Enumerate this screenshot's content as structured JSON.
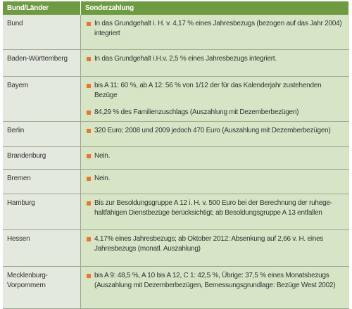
{
  "table": {
    "header": [
      "Bund/Länder",
      "Sonderzahlung"
    ],
    "rows": [
      {
        "land": "Bund",
        "items": [
          "In das Grundgehalt i. H. v. 4,17 % eines Jahresbezugs (bezogen auf das Jahr 2004) integriert"
        ]
      },
      {
        "land": "Baden-Württemberg",
        "items": [
          "In das Grundgehalt i.H.v. 2,5 % eines Jahresbezugs integriert."
        ]
      },
      {
        "land": "Bayern",
        "items": [
          "bis A 11: 60 %, ab A 12: 56 % von 1/12 der für das Kalenderjahr zustehenden Bezüge",
          "84,29 % des Familienzuschlags (Auszahlung mit Dezemberbezügen)"
        ]
      },
      {
        "land": "Berlin",
        "items": [
          "320 Euro; 2008 und 2009 jedoch 470 Euro (Auszahlung mit Dezemberbezügen)"
        ]
      },
      {
        "land": "Brandenburg",
        "items": [
          "Nein."
        ]
      },
      {
        "land": "Bremen",
        "items": [
          "Nein."
        ]
      },
      {
        "land": "Hamburg",
        "items": [
          "Bis zur Besoldungsgruppe A 12 i. H. v. 500 Euro bei der Berechnung der ruhege-haltfähigen Dienstbezüge berücksichtigt; ab Besoldungsgruppe A 13 entfallen"
        ]
      },
      {
        "land": "Hessen",
        "items": [
          "4,17% eines Jahresbezugs; ab Oktober 2012: Absenkung auf 2,66 v. H. eines Jahresbezugs (monatl. Auszahlung)"
        ]
      },
      {
        "land": "Mecklenburg-Vorpommern",
        "items": [
          "bis A 9: 48,5 %, A 10 bis A 12, C 1: 42,5 %, Übrige: 37,5 % eines Monatsbezugs (Auszahlung mit Dezemberbezügen, Bemessungsgrundlage: Bezüge West 2002)"
        ]
      }
    ]
  }
}
